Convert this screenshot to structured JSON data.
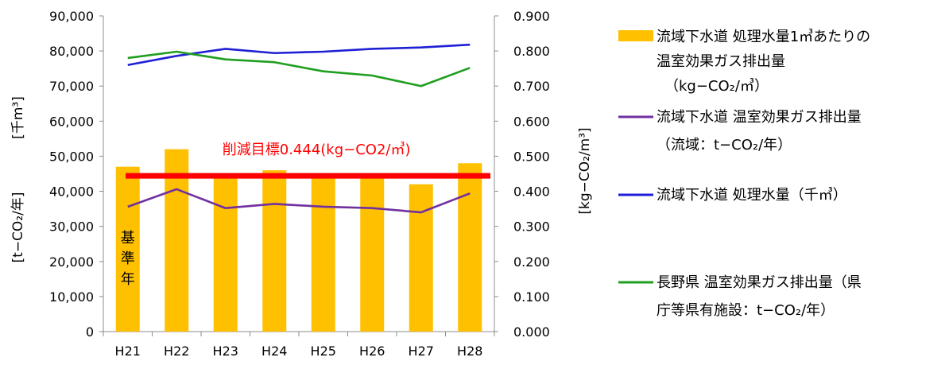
{
  "chart_data": {
    "type": "bar+line",
    "categories": [
      "H21",
      "H22",
      "H23",
      "H24",
      "H25",
      "H26",
      "H27",
      "H28"
    ],
    "bar_series": {
      "axis": "right",
      "values": [
        0.47,
        0.52,
        0.45,
        0.46,
        0.45,
        0.445,
        0.42,
        0.48
      ],
      "color": "#FFC000",
      "legend": [
        "流域下水道 処理水量1㎥あたりの",
        "温室効果ガス排出量",
        "（kg−CO₂/㎥）"
      ]
    },
    "line_series": [
      {
        "axis": "left",
        "values": [
          35600,
          40600,
          35200,
          36400,
          35600,
          35200,
          34000,
          39400
        ],
        "color": "#7030A0",
        "legend": [
          "流域下水道 温室効果ガス排出量",
          "（流域：t−CO₂/年）"
        ]
      },
      {
        "axis": "left",
        "values": [
          76000,
          78600,
          80600,
          79400,
          79800,
          80600,
          81000,
          81800
        ],
        "color": "#1F1FD6",
        "legend": [
          "流域下水道 処理水量（千㎥）"
        ]
      },
      {
        "axis": "left",
        "values": [
          78000,
          79800,
          77600,
          76800,
          74200,
          73000,
          70000,
          75200
        ],
        "color": "#1F9E1F",
        "legend": [
          "長野県 温室効果ガス排出量（県",
          "庁等県有施設：t−CO₂/年）"
        ]
      }
    ],
    "target": {
      "axis": "right",
      "value": 0.444,
      "label": "削減目標0.444(kg−CO2/㎥)",
      "color": "#FF0000"
    },
    "base_year_label": [
      "基",
      "準",
      "年"
    ],
    "y_left": {
      "min": 0,
      "max": 90000,
      "ticks": [
        "0",
        "10,000",
        "20,000",
        "30,000",
        "40,000",
        "50,000",
        "60,000",
        "70,000",
        "80,000",
        "90,000"
      ],
      "label_lower": "[t−CO₂/年]",
      "label_upper": "[千m³]"
    },
    "y_right": {
      "min": 0,
      "max": 0.9,
      "ticks": [
        "0.000",
        "0.100",
        "0.200",
        "0.300",
        "0.400",
        "0.500",
        "0.600",
        "0.700",
        "0.800",
        "0.900"
      ],
      "label": "[kg−CO₂/m³]"
    },
    "grid": false,
    "legend_position": "right"
  }
}
